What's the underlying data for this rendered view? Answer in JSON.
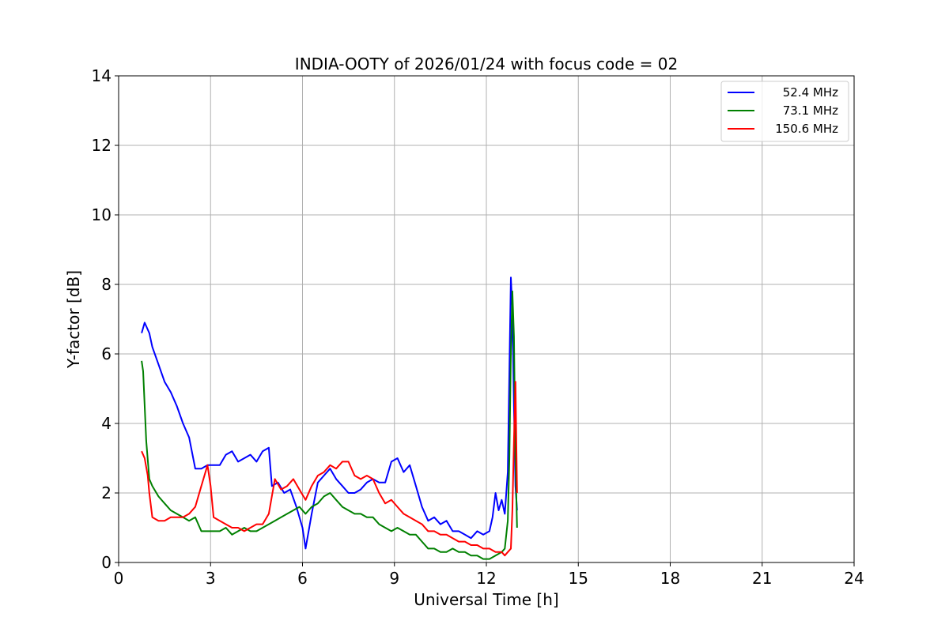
{
  "chart_data": {
    "type": "line",
    "title": "INDIA-OOTY of 2026/01/24 with focus code = 02",
    "xlabel": "Universal Time [h]",
    "ylabel": "Y-factor [dB]",
    "xlim": [
      0,
      24
    ],
    "ylim": [
      0,
      14
    ],
    "xticks": [
      0,
      3,
      6,
      9,
      12,
      15,
      18,
      21,
      24
    ],
    "yticks": [
      0,
      2,
      4,
      6,
      8,
      10,
      12,
      14
    ],
    "xtick_labels": [
      "0",
      "3",
      "6",
      "9",
      "12",
      "15",
      "18",
      "21",
      "24"
    ],
    "ytick_labels": [
      "0",
      "2",
      "4",
      "6",
      "8",
      "10",
      "12",
      "14"
    ],
    "grid": true,
    "legend_position": "top-right",
    "series": [
      {
        "name": "52.4 MHz",
        "color": "#0000ff",
        "x": [
          0.75,
          0.85,
          1.0,
          1.1,
          1.3,
          1.5,
          1.7,
          1.9,
          2.1,
          2.3,
          2.5,
          2.7,
          2.9,
          3.1,
          3.3,
          3.5,
          3.7,
          3.9,
          4.1,
          4.3,
          4.5,
          4.7,
          4.9,
          5.0,
          5.2,
          5.4,
          5.6,
          5.8,
          6.0,
          6.1,
          6.3,
          6.5,
          6.7,
          6.9,
          7.1,
          7.3,
          7.5,
          7.7,
          7.9,
          8.1,
          8.3,
          8.5,
          8.7,
          8.9,
          9.1,
          9.3,
          9.5,
          9.7,
          9.9,
          10.1,
          10.3,
          10.5,
          10.7,
          10.9,
          11.1,
          11.3,
          11.5,
          11.7,
          11.9,
          12.1,
          12.2,
          12.3,
          12.4,
          12.5,
          12.6,
          12.7,
          12.75,
          12.8,
          12.85,
          12.9,
          12.95,
          13.0
        ],
        "values": [
          6.6,
          6.9,
          6.6,
          6.2,
          5.7,
          5.2,
          4.9,
          4.5,
          4.0,
          3.6,
          2.7,
          2.7,
          2.8,
          2.8,
          2.8,
          3.1,
          3.2,
          2.9,
          3.0,
          3.1,
          2.9,
          3.2,
          3.3,
          2.2,
          2.3,
          2.0,
          2.1,
          1.6,
          1.0,
          0.4,
          1.4,
          2.3,
          2.5,
          2.7,
          2.4,
          2.2,
          2.0,
          2.0,
          2.1,
          2.3,
          2.4,
          2.3,
          2.3,
          2.9,
          3.0,
          2.6,
          2.8,
          2.2,
          1.6,
          1.2,
          1.3,
          1.1,
          1.2,
          0.9,
          0.9,
          0.8,
          0.7,
          0.9,
          0.8,
          0.9,
          1.3,
          2.0,
          1.5,
          1.8,
          1.4,
          2.6,
          5.5,
          8.2,
          7.2,
          4.5,
          2.2,
          1.5
        ]
      },
      {
        "name": "73.1 MHz",
        "color": "#008000",
        "x": [
          0.75,
          0.8,
          0.9,
          1.0,
          1.1,
          1.3,
          1.5,
          1.7,
          1.9,
          2.1,
          2.3,
          2.5,
          2.7,
          2.9,
          3.1,
          3.3,
          3.5,
          3.7,
          3.9,
          4.1,
          4.3,
          4.5,
          4.7,
          4.9,
          5.1,
          5.3,
          5.5,
          5.7,
          5.9,
          6.1,
          6.3,
          6.5,
          6.7,
          6.9,
          7.1,
          7.3,
          7.5,
          7.7,
          7.9,
          8.1,
          8.3,
          8.5,
          8.7,
          8.9,
          9.1,
          9.3,
          9.5,
          9.7,
          9.9,
          10.1,
          10.3,
          10.5,
          10.7,
          10.9,
          11.1,
          11.3,
          11.5,
          11.7,
          11.9,
          12.1,
          12.3,
          12.5,
          12.6,
          12.7,
          12.75,
          12.8,
          12.85,
          12.9,
          12.95,
          13.0
        ],
        "values": [
          5.8,
          5.5,
          3.5,
          2.4,
          2.2,
          1.9,
          1.7,
          1.5,
          1.4,
          1.3,
          1.2,
          1.3,
          0.9,
          0.9,
          0.9,
          0.9,
          1.0,
          0.8,
          0.9,
          1.0,
          0.9,
          0.9,
          1.0,
          1.1,
          1.2,
          1.3,
          1.4,
          1.5,
          1.6,
          1.4,
          1.6,
          1.7,
          1.9,
          2.0,
          1.8,
          1.6,
          1.5,
          1.4,
          1.4,
          1.3,
          1.3,
          1.1,
          1.0,
          0.9,
          1.0,
          0.9,
          0.8,
          0.8,
          0.6,
          0.4,
          0.4,
          0.3,
          0.3,
          0.4,
          0.3,
          0.3,
          0.2,
          0.2,
          0.1,
          0.1,
          0.2,
          0.3,
          0.4,
          1.2,
          3.0,
          6.0,
          7.8,
          6.5,
          3.0,
          1.0
        ]
      },
      {
        "name": "150.6 MHz",
        "color": "#ff0000",
        "x": [
          0.75,
          0.85,
          0.95,
          1.0,
          1.1,
          1.3,
          1.5,
          1.7,
          1.9,
          2.1,
          2.3,
          2.5,
          2.7,
          2.9,
          3.0,
          3.1,
          3.3,
          3.5,
          3.7,
          3.9,
          4.1,
          4.3,
          4.5,
          4.7,
          4.9,
          5.1,
          5.3,
          5.5,
          5.7,
          5.9,
          6.1,
          6.3,
          6.5,
          6.7,
          6.9,
          7.1,
          7.3,
          7.5,
          7.7,
          7.9,
          8.1,
          8.3,
          8.5,
          8.7,
          8.9,
          9.1,
          9.3,
          9.5,
          9.7,
          9.9,
          10.1,
          10.3,
          10.5,
          10.7,
          10.9,
          11.1,
          11.3,
          11.5,
          11.7,
          11.9,
          12.1,
          12.3,
          12.5,
          12.6,
          12.7,
          12.8,
          12.85,
          12.9,
          12.95,
          13.0
        ],
        "values": [
          3.2,
          3.0,
          2.5,
          2.0,
          1.3,
          1.2,
          1.2,
          1.3,
          1.3,
          1.3,
          1.4,
          1.6,
          2.2,
          2.8,
          2.2,
          1.3,
          1.2,
          1.1,
          1.0,
          1.0,
          0.9,
          1.0,
          1.1,
          1.1,
          1.4,
          2.4,
          2.1,
          2.2,
          2.4,
          2.1,
          1.8,
          2.2,
          2.5,
          2.6,
          2.8,
          2.7,
          2.9,
          2.9,
          2.5,
          2.4,
          2.5,
          2.4,
          2.0,
          1.7,
          1.8,
          1.6,
          1.4,
          1.3,
          1.2,
          1.1,
          0.9,
          0.9,
          0.8,
          0.8,
          0.7,
          0.6,
          0.6,
          0.5,
          0.5,
          0.4,
          0.4,
          0.3,
          0.3,
          0.2,
          0.3,
          0.4,
          1.5,
          3.5,
          5.2,
          2.0
        ]
      }
    ]
  }
}
